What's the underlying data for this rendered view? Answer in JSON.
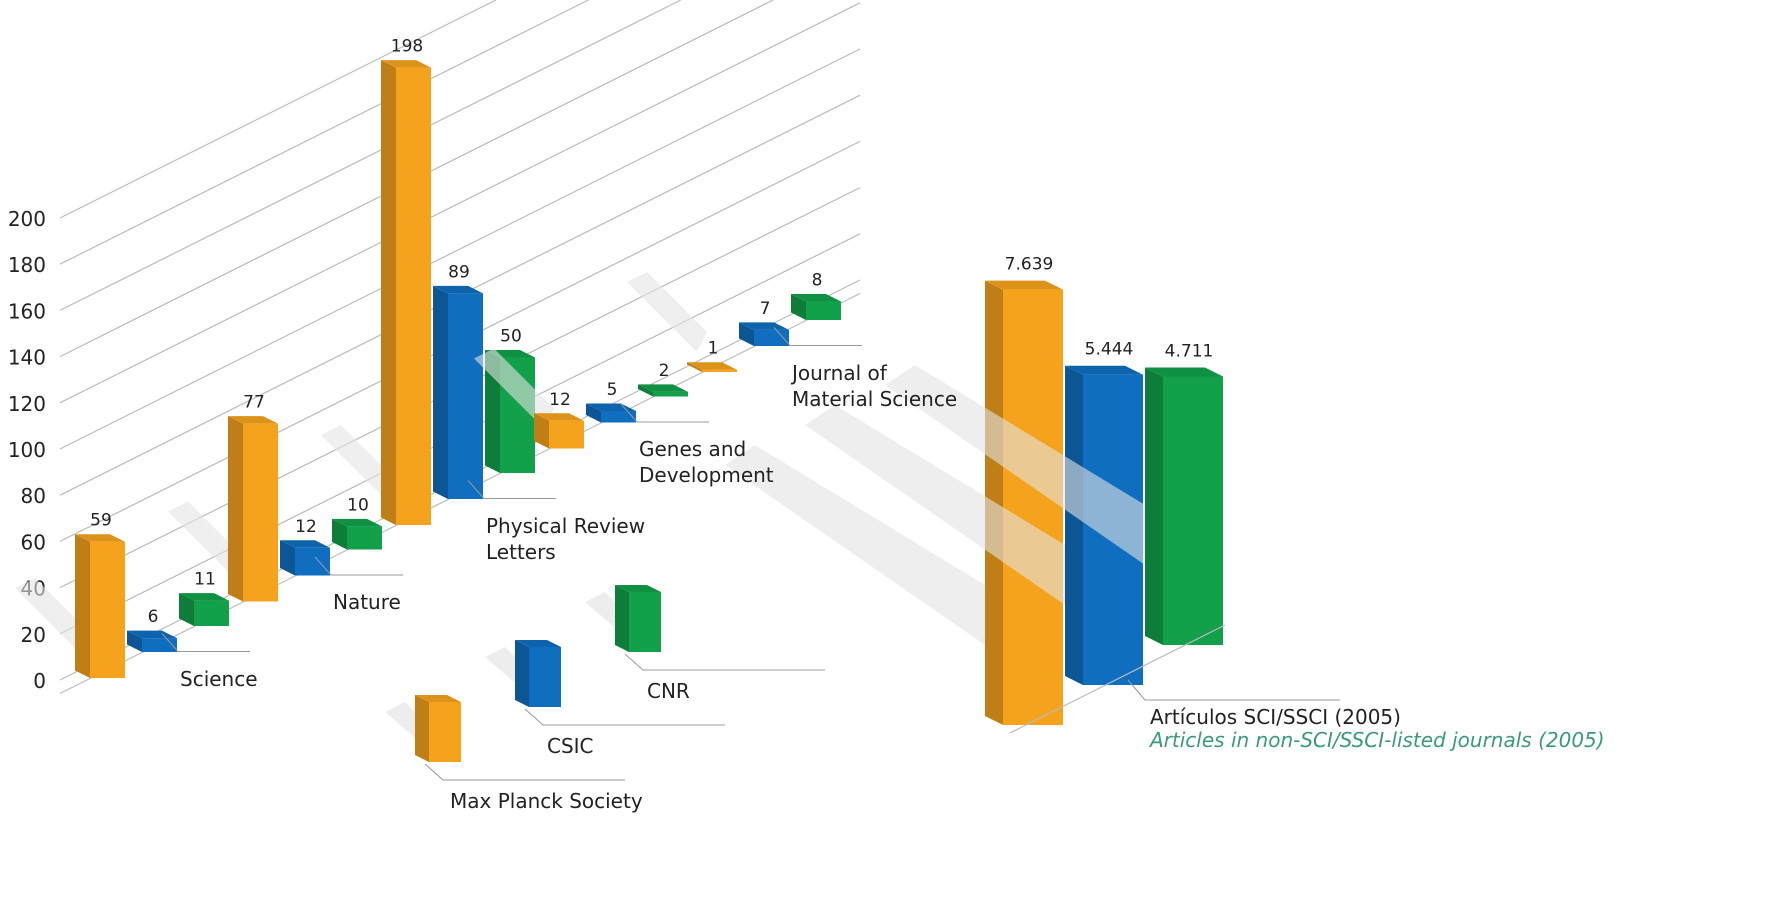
{
  "chart_data": [
    {
      "type": "bar3d",
      "categories": [
        "Science",
        "Nature",
        "Physical Review Letters",
        "Genes and Development",
        "Journal of Material Science"
      ],
      "series": [
        {
          "name": "Max Planck Society",
          "color": "#f5a31c",
          "values": [
            59,
            77,
            198,
            12,
            1
          ]
        },
        {
          "name": "CSIC",
          "color": "#0f6ec0",
          "values": [
            6,
            12,
            89,
            5,
            7
          ]
        },
        {
          "name": "CNR",
          "color": "#12a04a",
          "values": [
            11,
            10,
            50,
            2,
            8
          ]
        }
      ],
      "ylim": [
        0,
        200
      ],
      "yticks": [
        0,
        20,
        40,
        60,
        80,
        100,
        120,
        140,
        160,
        180,
        200
      ],
      "grid": true
    },
    {
      "type": "bar3d-single",
      "title": "Artículos SCI/SSCI (2005)",
      "subtitle": "Articles in non-SCI/SSCI-listed journals (2005)",
      "values": [
        7.639,
        5.444,
        4.711
      ],
      "colors": [
        "#f5a31c",
        "#0f6ec0",
        "#12a04a"
      ]
    }
  ]
}
